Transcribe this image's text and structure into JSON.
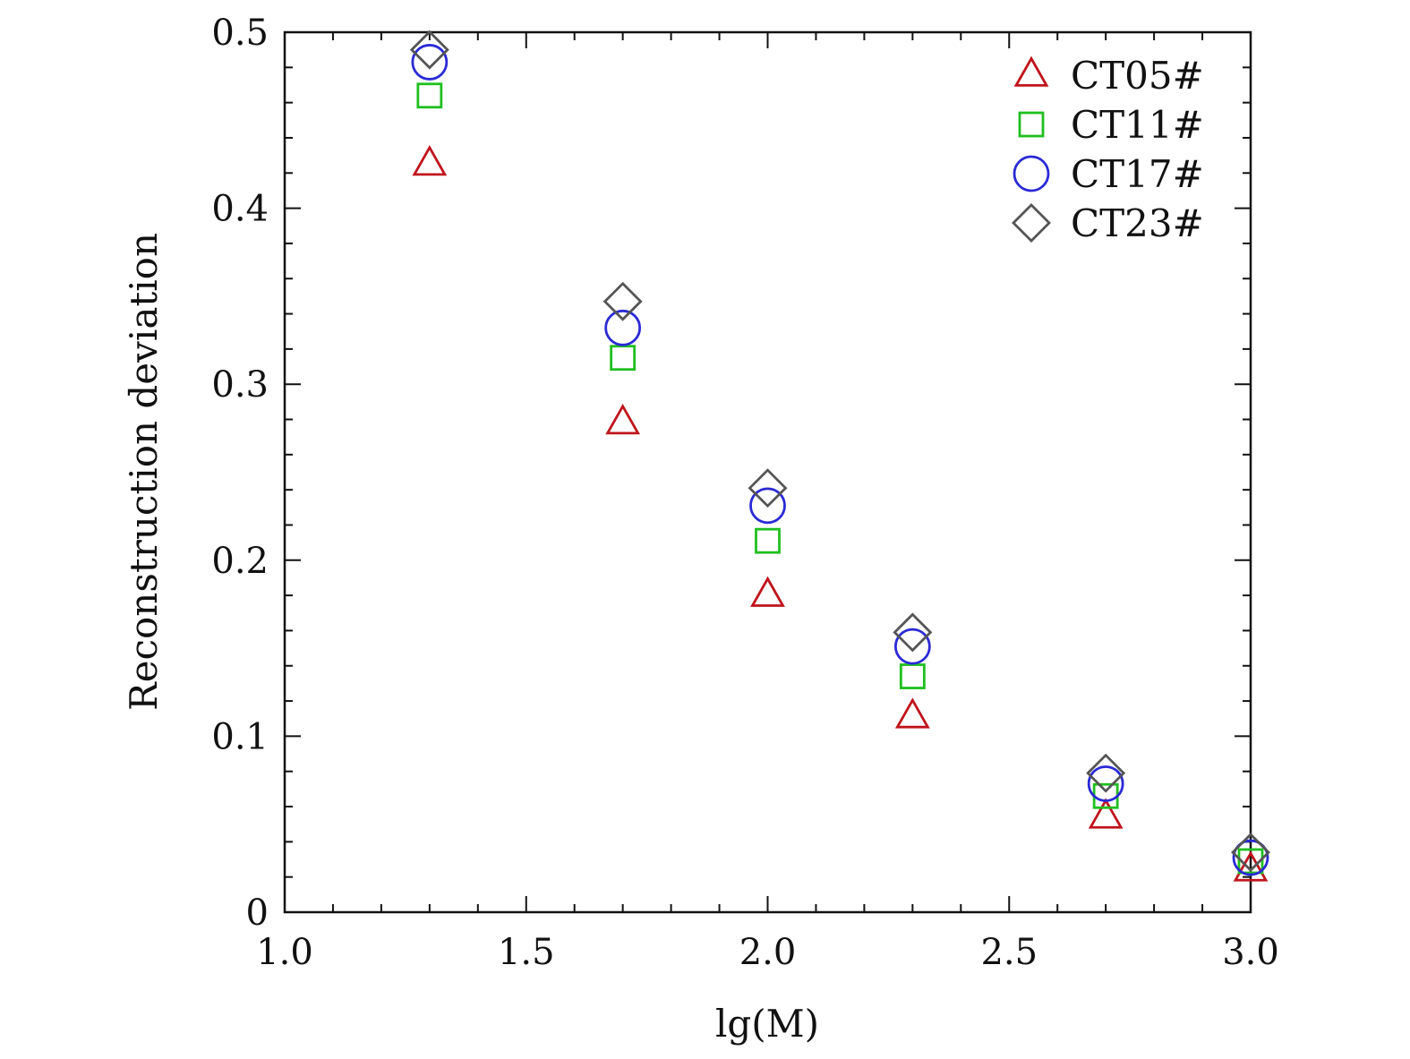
{
  "chart_data": {
    "type": "scatter",
    "title": "",
    "xlabel": "lg(M)",
    "ylabel": "Reconstruction deviation",
    "xlim": [
      1.0,
      3.0
    ],
    "ylim": [
      0,
      0.5
    ],
    "x_ticks": [
      "1.0",
      "1.5",
      "2.0",
      "2.5",
      "3.0"
    ],
    "y_ticks": [
      "0",
      "0.1",
      "0.2",
      "0.3",
      "0.4",
      "0.5"
    ],
    "grid": false,
    "legend_position": "top-right",
    "x": [
      1.3,
      1.7,
      2.0,
      2.3,
      2.7,
      3.0
    ],
    "series": [
      {
        "name": "CT05#",
        "marker": "triangle",
        "color": "#c0141c",
        "values": [
          0.425,
          0.278,
          0.18,
          0.111,
          0.054,
          0.024
        ]
      },
      {
        "name": "CT11#",
        "marker": "square",
        "color": "#1fbf1f",
        "values": [
          0.464,
          0.315,
          0.211,
          0.134,
          0.066,
          0.029
        ]
      },
      {
        "name": "CT17#",
        "marker": "circle",
        "color": "#2a2ad6",
        "values": [
          0.483,
          0.332,
          0.231,
          0.151,
          0.073,
          0.031
        ]
      },
      {
        "name": "CT23#",
        "marker": "diamond",
        "color": "#555555",
        "values": [
          0.49,
          0.347,
          0.241,
          0.159,
          0.079,
          0.034
        ]
      }
    ]
  }
}
